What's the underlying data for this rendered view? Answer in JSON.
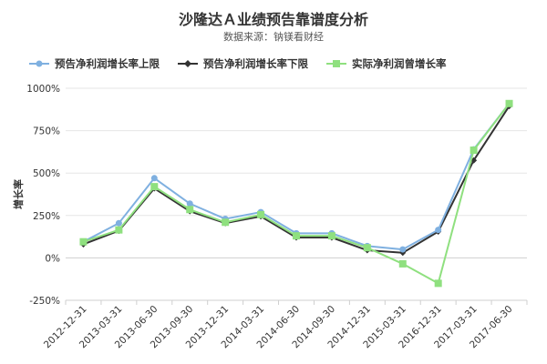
{
  "title": "沙隆达Ａ业绩预告靠谱度分析",
  "subtitle": "数据来源：钠镁看财经",
  "chart_data": {
    "type": "line",
    "title": "沙隆达Ａ业绩预告靠谱度分析",
    "ylabel": "增长率",
    "xlabel": "",
    "categories": [
      "2012-12-31",
      "2013-03-31",
      "2013-06-30",
      "2013-09-30",
      "2013-12-31",
      "2014-03-31",
      "2014-06-30",
      "2014-09-30",
      "2014-12-31",
      "2015-03-31",
      "2016-12-31",
      "2017-03-31",
      "2017-06-30"
    ],
    "ylim": [
      -250,
      1000
    ],
    "yticks": [
      -250,
      0,
      250,
      500,
      750,
      1000
    ],
    "ytick_labels": [
      "-250%",
      "0%",
      "250%",
      "500%",
      "750%",
      "1000%"
    ],
    "grid": true,
    "legend_position": "top",
    "series": [
      {
        "name": "预告净利润增长率上限",
        "color": "#7fb0e0",
        "marker": "circle",
        "values": [
          95,
          205,
          470,
          320,
          230,
          270,
          145,
          145,
          70,
          50,
          165,
          640,
          910
        ]
      },
      {
        "name": "预告净利润增长率下限",
        "color": "#333333",
        "marker": "diamond",
        "values": [
          80,
          160,
          410,
          275,
          205,
          245,
          120,
          120,
          45,
          30,
          155,
          575,
          895
        ]
      },
      {
        "name": "实际净利润曾增长率",
        "color": "#8fe07f",
        "marker": "square",
        "values": [
          95,
          165,
          420,
          285,
          210,
          255,
          130,
          130,
          60,
          -35,
          -150,
          635,
          910
        ]
      }
    ]
  }
}
